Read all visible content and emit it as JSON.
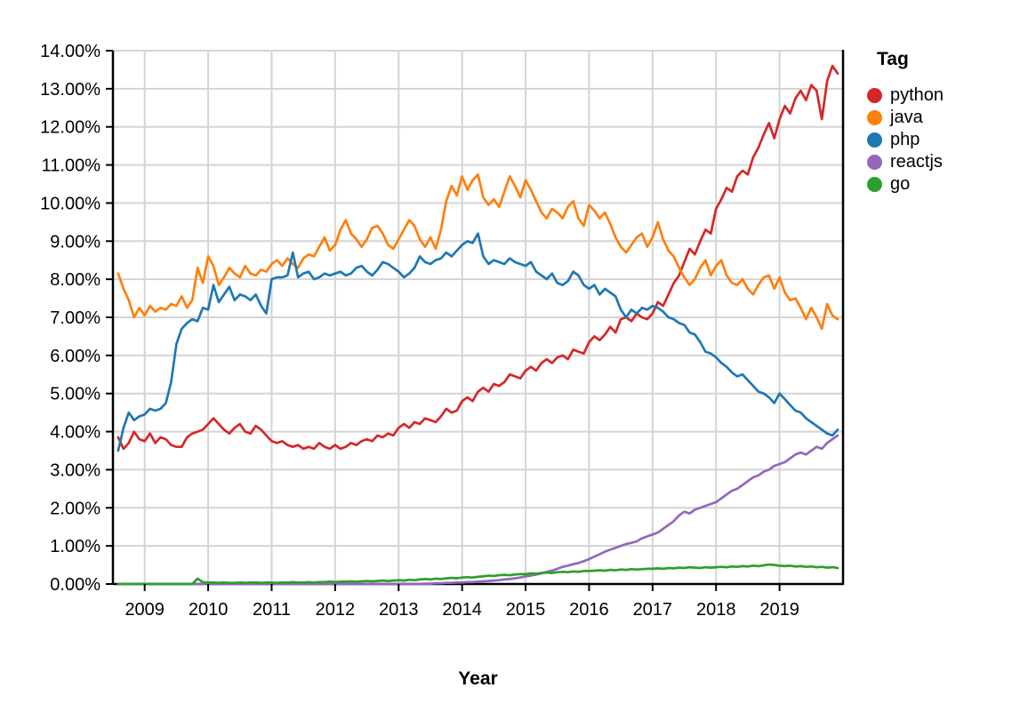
{
  "chart_data": {
    "type": "line",
    "title": "",
    "xlabel": "Year",
    "legend_title": "Tag",
    "grid": true,
    "legend_position": "right",
    "x_domain": [
      2008.5,
      2020.0
    ],
    "y_domain": [
      0,
      14
    ],
    "x_start": 2008.5833,
    "x_step_years": 0.08333,
    "x_tick_values": [
      2009,
      2010,
      2011,
      2012,
      2013,
      2014,
      2015,
      2016,
      2017,
      2018,
      2019
    ],
    "x_tick_labels": [
      "2009",
      "2010",
      "2011",
      "2012",
      "2013",
      "2014",
      "2015",
      "2016",
      "2017",
      "2018",
      "2019"
    ],
    "y_tick_values": [
      0,
      1,
      2,
      3,
      4,
      5,
      6,
      7,
      8,
      9,
      10,
      11,
      12,
      13,
      14
    ],
    "y_tick_labels": [
      "0.00%",
      "1.00%",
      "2.00%",
      "3.00%",
      "4.00%",
      "5.00%",
      "6.00%",
      "7.00%",
      "8.00%",
      "9.00%",
      "10.00%",
      "11.00%",
      "12.00%",
      "13.00%",
      "14.00%"
    ],
    "axis_color": "#000000",
    "grid_color": "#d4d4d4",
    "series": [
      {
        "name": "python",
        "color": "#d62728",
        "values": [
          3.85,
          3.55,
          3.7,
          4.0,
          3.8,
          3.75,
          3.95,
          3.7,
          3.85,
          3.8,
          3.65,
          3.6,
          3.6,
          3.85,
          3.95,
          4.0,
          4.05,
          4.2,
          4.35,
          4.2,
          4.05,
          3.95,
          4.1,
          4.2,
          4.0,
          3.95,
          4.15,
          4.05,
          3.9,
          3.75,
          3.7,
          3.75,
          3.65,
          3.6,
          3.65,
          3.55,
          3.6,
          3.55,
          3.7,
          3.6,
          3.55,
          3.65,
          3.55,
          3.6,
          3.7,
          3.65,
          3.75,
          3.8,
          3.75,
          3.9,
          3.85,
          3.95,
          3.9,
          4.1,
          4.2,
          4.1,
          4.25,
          4.2,
          4.35,
          4.3,
          4.25,
          4.4,
          4.6,
          4.5,
          4.55,
          4.8,
          4.9,
          4.8,
          5.05,
          5.15,
          5.05,
          5.25,
          5.2,
          5.3,
          5.5,
          5.45,
          5.4,
          5.6,
          5.7,
          5.6,
          5.8,
          5.9,
          5.8,
          5.95,
          6.0,
          5.9,
          6.15,
          6.1,
          6.05,
          6.35,
          6.5,
          6.4,
          6.55,
          6.75,
          6.6,
          6.95,
          7.0,
          6.9,
          7.1,
          7.0,
          6.95,
          7.1,
          7.4,
          7.3,
          7.6,
          7.9,
          8.1,
          8.45,
          8.8,
          8.65,
          9.0,
          9.3,
          9.2,
          9.85,
          10.1,
          10.4,
          10.3,
          10.7,
          10.85,
          10.75,
          11.2,
          11.45,
          11.8,
          12.1,
          11.7,
          12.2,
          12.55,
          12.35,
          12.75,
          12.95,
          12.7,
          13.1,
          12.95,
          12.2,
          13.2,
          13.6,
          13.4
        ]
      },
      {
        "name": "java",
        "color": "#ff7f0e",
        "values": [
          8.15,
          7.75,
          7.45,
          7.0,
          7.25,
          7.05,
          7.3,
          7.15,
          7.25,
          7.2,
          7.35,
          7.3,
          7.55,
          7.25,
          7.45,
          8.3,
          7.9,
          8.6,
          8.35,
          7.85,
          8.05,
          8.3,
          8.15,
          8.05,
          8.35,
          8.15,
          8.1,
          8.25,
          8.2,
          8.4,
          8.5,
          8.35,
          8.55,
          8.4,
          8.3,
          8.55,
          8.65,
          8.6,
          8.85,
          9.1,
          8.75,
          8.9,
          9.3,
          9.55,
          9.2,
          9.05,
          8.85,
          9.05,
          9.35,
          9.4,
          9.2,
          8.9,
          8.8,
          9.05,
          9.3,
          9.55,
          9.4,
          9.05,
          8.85,
          9.1,
          8.8,
          9.3,
          10.05,
          10.45,
          10.2,
          10.7,
          10.35,
          10.6,
          10.75,
          10.15,
          9.95,
          10.1,
          9.9,
          10.3,
          10.7,
          10.45,
          10.15,
          10.6,
          10.35,
          10.05,
          9.75,
          9.6,
          9.85,
          9.75,
          9.6,
          9.9,
          10.05,
          9.6,
          9.4,
          9.95,
          9.8,
          9.6,
          9.75,
          9.45,
          9.1,
          8.85,
          8.7,
          8.9,
          9.1,
          9.2,
          8.85,
          9.1,
          9.5,
          9.05,
          8.75,
          8.6,
          8.3,
          8.05,
          7.85,
          8.0,
          8.3,
          8.5,
          8.1,
          8.35,
          8.5,
          8.1,
          7.9,
          7.85,
          8.0,
          7.75,
          7.6,
          7.85,
          8.05,
          8.1,
          7.75,
          8.05,
          7.65,
          7.45,
          7.5,
          7.25,
          6.95,
          7.25,
          7.0,
          6.7,
          7.35,
          7.05,
          6.95
        ]
      },
      {
        "name": "php",
        "color": "#1f77b4",
        "values": [
          3.5,
          4.1,
          4.5,
          4.3,
          4.4,
          4.45,
          4.6,
          4.55,
          4.6,
          4.75,
          5.3,
          6.3,
          6.7,
          6.85,
          6.95,
          6.9,
          7.25,
          7.2,
          7.85,
          7.4,
          7.6,
          7.8,
          7.45,
          7.6,
          7.55,
          7.45,
          7.6,
          7.3,
          7.1,
          8.0,
          8.05,
          8.05,
          8.1,
          8.7,
          8.05,
          8.15,
          8.2,
          8.0,
          8.05,
          8.15,
          8.1,
          8.15,
          8.2,
          8.1,
          8.15,
          8.3,
          8.35,
          8.2,
          8.1,
          8.25,
          8.45,
          8.4,
          8.3,
          8.2,
          8.05,
          8.15,
          8.3,
          8.6,
          8.45,
          8.4,
          8.5,
          8.55,
          8.7,
          8.6,
          8.75,
          8.9,
          9.0,
          8.95,
          9.2,
          8.6,
          8.4,
          8.5,
          8.45,
          8.4,
          8.55,
          8.45,
          8.4,
          8.35,
          8.45,
          8.2,
          8.1,
          8.0,
          8.15,
          7.9,
          7.85,
          7.95,
          8.2,
          8.1,
          7.85,
          7.75,
          7.85,
          7.6,
          7.75,
          7.65,
          7.55,
          7.2,
          7.0,
          7.2,
          7.1,
          7.25,
          7.2,
          7.3,
          7.25,
          7.15,
          7.0,
          6.95,
          6.85,
          6.8,
          6.6,
          6.55,
          6.35,
          6.1,
          6.05,
          5.95,
          5.8,
          5.7,
          5.55,
          5.45,
          5.5,
          5.35,
          5.2,
          5.05,
          5.0,
          4.9,
          4.75,
          5.0,
          4.85,
          4.7,
          4.55,
          4.5,
          4.35,
          4.25,
          4.15,
          4.05,
          3.95,
          3.9,
          4.05
        ]
      },
      {
        "name": "reactjs",
        "color": "#9467bd",
        "values": [
          0,
          0,
          0,
          0,
          0,
          0,
          0,
          0,
          0,
          0,
          0,
          0,
          0,
          0,
          0,
          0,
          0,
          0,
          0,
          0,
          0,
          0,
          0,
          0,
          0,
          0,
          0,
          0,
          0,
          0,
          0,
          0,
          0,
          0,
          0,
          0,
          0,
          0,
          0,
          0,
          0,
          0,
          0,
          0,
          0,
          0,
          0,
          0,
          0,
          0,
          0,
          0,
          0,
          0,
          0,
          0,
          0,
          0,
          0.01,
          0.01,
          0.02,
          0.02,
          0.03,
          0.03,
          0.04,
          0.04,
          0.05,
          0.05,
          0.06,
          0.07,
          0.08,
          0.09,
          0.1,
          0.12,
          0.13,
          0.15,
          0.17,
          0.2,
          0.22,
          0.25,
          0.28,
          0.32,
          0.35,
          0.4,
          0.45,
          0.48,
          0.52,
          0.55,
          0.6,
          0.65,
          0.72,
          0.78,
          0.85,
          0.9,
          0.95,
          1.0,
          1.05,
          1.08,
          1.12,
          1.2,
          1.25,
          1.3,
          1.35,
          1.45,
          1.55,
          1.65,
          1.8,
          1.9,
          1.85,
          1.95,
          2.0,
          2.05,
          2.1,
          2.15,
          2.25,
          2.35,
          2.45,
          2.5,
          2.6,
          2.7,
          2.8,
          2.85,
          2.95,
          3.0,
          3.1,
          3.15,
          3.2,
          3.3,
          3.4,
          3.45,
          3.4,
          3.5,
          3.6,
          3.55,
          3.7,
          3.8,
          3.9
        ]
      },
      {
        "name": "go",
        "color": "#2ca02c",
        "values": [
          0,
          0,
          0,
          0,
          0,
          0,
          0,
          0,
          0,
          0,
          0,
          0,
          0,
          0,
          0,
          0.14,
          0.05,
          0.04,
          0.04,
          0.03,
          0.04,
          0.03,
          0.03,
          0.04,
          0.03,
          0.04,
          0.04,
          0.03,
          0.04,
          0.04,
          0.03,
          0.04,
          0.04,
          0.05,
          0.04,
          0.04,
          0.05,
          0.04,
          0.05,
          0.05,
          0.06,
          0.05,
          0.06,
          0.06,
          0.07,
          0.06,
          0.07,
          0.08,
          0.07,
          0.08,
          0.09,
          0.08,
          0.09,
          0.1,
          0.09,
          0.11,
          0.1,
          0.12,
          0.13,
          0.12,
          0.14,
          0.13,
          0.15,
          0.16,
          0.15,
          0.17,
          0.18,
          0.17,
          0.19,
          0.2,
          0.22,
          0.21,
          0.23,
          0.24,
          0.23,
          0.25,
          0.26,
          0.26,
          0.28,
          0.27,
          0.29,
          0.3,
          0.29,
          0.31,
          0.32,
          0.31,
          0.33,
          0.32,
          0.34,
          0.34,
          0.35,
          0.36,
          0.35,
          0.37,
          0.36,
          0.38,
          0.37,
          0.39,
          0.38,
          0.39,
          0.4,
          0.4,
          0.41,
          0.4,
          0.42,
          0.41,
          0.43,
          0.42,
          0.44,
          0.43,
          0.42,
          0.44,
          0.43,
          0.44,
          0.45,
          0.44,
          0.46,
          0.45,
          0.47,
          0.46,
          0.48,
          0.47,
          0.49,
          0.51,
          0.5,
          0.48,
          0.47,
          0.48,
          0.46,
          0.47,
          0.45,
          0.46,
          0.44,
          0.45,
          0.43,
          0.44,
          0.42
        ]
      }
    ]
  }
}
